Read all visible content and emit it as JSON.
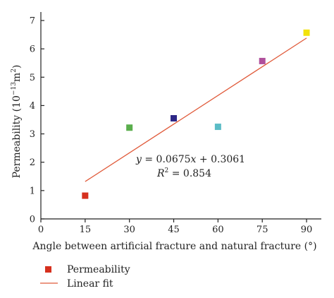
{
  "chart_data": {
    "type": "scatter",
    "xlabel": "Angle between artificial fracture and natural fracture (°)",
    "ylabel_main": "Permeability (10",
    "ylabel_exp": "−13",
    "ylabel_unit": "m",
    "ylabel_unit_exp": "2",
    "ylabel_close": ")",
    "xlim": [
      0,
      95
    ],
    "ylim": [
      0,
      7.3
    ],
    "xticks": [
      0,
      15,
      30,
      45,
      60,
      75,
      90
    ],
    "yticks": [
      0,
      1,
      2,
      3,
      4,
      5,
      6,
      7
    ],
    "grid": false,
    "points": [
      {
        "x": 15,
        "y": 0.82,
        "color": "#d6301e"
      },
      {
        "x": 30,
        "y": 3.22,
        "color": "#5aae4c"
      },
      {
        "x": 45,
        "y": 3.55,
        "color": "#2d2787"
      },
      {
        "x": 60,
        "y": 3.25,
        "color": "#5bbcc6"
      },
      {
        "x": 75,
        "y": 5.57,
        "color": "#b0509c"
      },
      {
        "x": 90,
        "y": 6.57,
        "color": "#f2e20b"
      }
    ],
    "fit": {
      "slope": 0.0675,
      "intercept": 0.3061,
      "x_start": 15,
      "x_end": 90,
      "color": "#e05a3a"
    },
    "annotation": {
      "eq_y": "y",
      "eq_rest": " = 0.0675",
      "eq_x": "x",
      "eq_tail": " + 0.3061",
      "r2_R": "R",
      "r2_exp": "2",
      "r2_rest": " = 0.854"
    },
    "legend": [
      {
        "label": "Permeability",
        "kind": "marker",
        "color": "#d6301e"
      },
      {
        "label": "Linear fit",
        "kind": "line",
        "color": "#e05a3a"
      }
    ]
  }
}
